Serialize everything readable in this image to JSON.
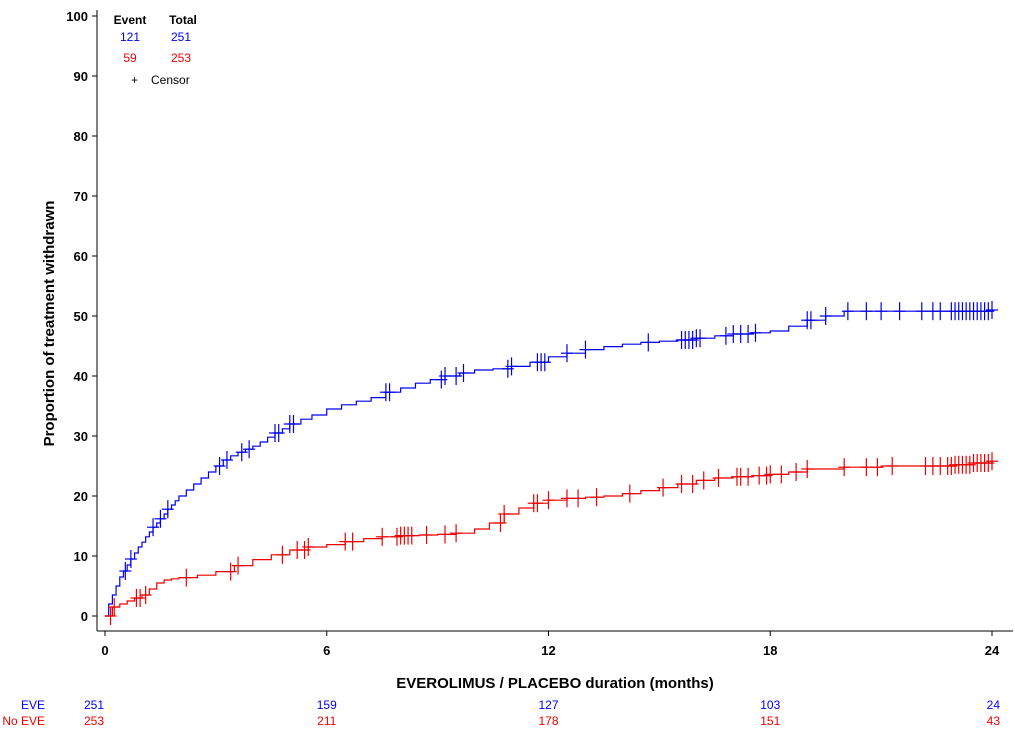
{
  "chart_data": {
    "type": "line",
    "title": "",
    "xlabel": "EVEROLIMUS / PLACEBO duration (months)",
    "ylabel": "Proportion of  treatment withdrawn",
    "xlim": [
      0,
      24
    ],
    "ylim": [
      0,
      100
    ],
    "x_ticks": [
      0,
      6,
      12,
      18,
      24
    ],
    "y_ticks": [
      0,
      10,
      20,
      30,
      40,
      50,
      60,
      70,
      80,
      90,
      100
    ],
    "grid": false,
    "legend": {
      "position": "top-left",
      "header_event": "Event",
      "header_total": "Total",
      "rows": [
        {
          "event": "121",
          "total": "251",
          "color": "#0000ee"
        },
        {
          "event": "59",
          "total": "253",
          "color": "#ee0000"
        }
      ],
      "censor_symbol": "+",
      "censor_label": "Censor"
    },
    "series": [
      {
        "color": "#0000ee",
        "step": true,
        "x": [
          0,
          0.1,
          0.2,
          0.3,
          0.4,
          0.5,
          0.6,
          0.7,
          0.8,
          0.9,
          1.0,
          1.1,
          1.2,
          1.3,
          1.4,
          1.5,
          1.6,
          1.7,
          1.8,
          1.9,
          2.0,
          2.2,
          2.4,
          2.6,
          2.8,
          3.0,
          3.2,
          3.4,
          3.6,
          3.8,
          4.0,
          4.2,
          4.4,
          4.6,
          4.8,
          5.0,
          5.3,
          5.6,
          6.0,
          6.4,
          6.8,
          7.2,
          7.6,
          8.0,
          8.4,
          8.8,
          9.2,
          9.6,
          10.0,
          10.5,
          11.0,
          11.5,
          12.0,
          12.5,
          13.0,
          13.5,
          14.0,
          14.5,
          15.0,
          15.5,
          16.0,
          16.5,
          17.0,
          17.5,
          18.0,
          18.5,
          19.0,
          19.5,
          20.0,
          24.0
        ],
        "y": [
          0,
          2,
          3.5,
          5,
          6.5,
          7.5,
          8.5,
          9.5,
          10.5,
          11.5,
          12.3,
          13.2,
          14,
          14.8,
          15.5,
          16.2,
          17,
          17.8,
          18.5,
          19.2,
          20,
          21,
          22,
          23,
          24,
          25,
          26,
          26.7,
          27.3,
          27.8,
          28.3,
          29,
          29.8,
          30.5,
          31.2,
          32,
          32.8,
          33.5,
          34.5,
          35.2,
          35.8,
          36.4,
          37.3,
          38,
          38.8,
          39.4,
          40,
          40.5,
          41,
          41.2,
          41.6,
          42.3,
          43.2,
          43.8,
          44.4,
          44.9,
          45.3,
          45.6,
          45.8,
          46,
          46.3,
          46.7,
          47,
          47.2,
          47.5,
          48.3,
          49.3,
          50,
          50.8,
          51
        ]
      },
      {
        "color": "#ee0000",
        "step": true,
        "x": [
          0,
          0.2,
          0.4,
          0.6,
          0.8,
          1.0,
          1.2,
          1.4,
          1.6,
          1.8,
          2.0,
          2.5,
          3.0,
          3.5,
          4.0,
          4.5,
          5.0,
          5.5,
          6.0,
          6.5,
          7.0,
          7.5,
          8.0,
          8.5,
          9.0,
          9.5,
          10.0,
          10.4,
          10.8,
          11.2,
          11.6,
          12.0,
          12.5,
          13.0,
          13.5,
          14.0,
          14.5,
          15.0,
          15.5,
          16.0,
          16.5,
          17.0,
          17.5,
          18.0,
          18.5,
          19.0,
          20.0,
          21.0,
          22.0,
          23.0,
          23.5,
          24.0
        ],
        "y": [
          0,
          1.5,
          2,
          2.5,
          3,
          3.5,
          4.5,
          5.5,
          6,
          6.2,
          6.4,
          6.8,
          7.4,
          8.4,
          9.4,
          10.2,
          11,
          11.5,
          11.9,
          12.4,
          12.9,
          13.2,
          13.4,
          13.5,
          13.6,
          13.8,
          14.5,
          15.5,
          17,
          18,
          18.8,
          19.3,
          19.6,
          19.8,
          20,
          20.4,
          20.9,
          21.4,
          22,
          22.6,
          23,
          23.2,
          23.4,
          23.6,
          24,
          24.5,
          24.8,
          25,
          25,
          25.2,
          25.5,
          25.8
        ]
      }
    ],
    "censor_marks": [
      {
        "color": "#0000ee",
        "x": [
          0.55,
          0.7,
          1.3,
          1.5,
          1.7,
          3.1,
          3.3,
          3.7,
          3.9,
          4.6,
          4.7,
          5.0,
          5.1,
          7.6,
          7.7,
          9.1,
          9.2,
          9.5,
          9.7,
          10.9,
          11.0,
          11.7,
          11.8,
          11.9,
          12.5,
          13.0,
          14.7,
          15.6,
          15.7,
          15.8,
          15.9,
          16.0,
          16.1,
          16.8,
          17.0,
          17.2,
          17.4,
          17.6,
          19.0,
          19.1,
          19.5,
          20.1,
          20.6,
          21.0,
          21.5,
          22.1,
          22.4,
          22.6,
          22.9,
          23.0,
          23.1,
          23.2,
          23.3,
          23.4,
          23.5,
          23.6,
          23.7,
          23.8,
          23.9,
          24.0
        ]
      },
      {
        "color": "#ee0000",
        "x": [
          0.15,
          0.25,
          0.85,
          0.95,
          1.1,
          2.2,
          3.4,
          3.6,
          4.8,
          5.2,
          5.4,
          5.5,
          6.5,
          6.7,
          7.5,
          7.9,
          8.0,
          8.1,
          8.2,
          8.3,
          8.7,
          9.2,
          9.5,
          10.7,
          10.8,
          11.6,
          11.7,
          12.0,
          12.5,
          12.8,
          13.3,
          14.2,
          15.1,
          15.6,
          15.9,
          16.2,
          16.6,
          17.1,
          17.2,
          17.4,
          17.7,
          17.9,
          18.0,
          18.3,
          18.7,
          19.0,
          20.0,
          20.6,
          20.9,
          21.3,
          22.2,
          22.4,
          22.6,
          22.8,
          22.9,
          23.0,
          23.1,
          23.2,
          23.3,
          23.4,
          23.5,
          23.6,
          23.7,
          23.8,
          23.9,
          24.0
        ]
      }
    ],
    "risk_table": {
      "rows": [
        {
          "label": "EVE",
          "color": "#0000ee",
          "at_x": [
            0,
            6,
            12,
            18,
            24
          ],
          "values": [
            "251",
            "159",
            "127",
            "103",
            "24"
          ]
        },
        {
          "label": "No EVE",
          "color": "#ee0000",
          "at_x": [
            0,
            6,
            12,
            18,
            24
          ],
          "values": [
            "253",
            "211",
            "178",
            "151",
            "43"
          ]
        }
      ]
    }
  }
}
